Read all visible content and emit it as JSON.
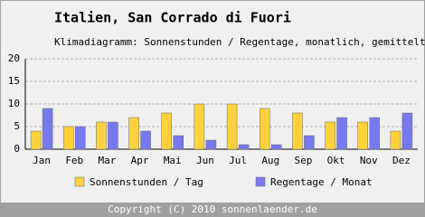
{
  "chart_data": {
    "type": "bar",
    "title": "Italien, San Corrado di Fuori",
    "subtitle": "Klimadiagramm: Sonnenstunden / Regentage, monatlich, gemittelt",
    "footer": "Copyright (C) 2010 sonnenlaender.de",
    "categories": [
      "Jan",
      "Feb",
      "Mar",
      "Apr",
      "Mai",
      "Jun",
      "Jul",
      "Aug",
      "Sep",
      "Okt",
      "Nov",
      "Dez"
    ],
    "series": [
      {
        "name": "Sonnenstunden / Tag",
        "color": "#ffd23c",
        "values": [
          4,
          5,
          6,
          7,
          8,
          10,
          10,
          9,
          8,
          6,
          6,
          4
        ]
      },
      {
        "name": "Regentage / Monat",
        "color": "#7878f0",
        "values": [
          9,
          5,
          6,
          4,
          3,
          2,
          1,
          1,
          3,
          7,
          7,
          8
        ]
      }
    ],
    "ylim": [
      0,
      20
    ],
    "yticks": [
      0,
      5,
      10,
      15,
      20
    ],
    "grid": true
  }
}
